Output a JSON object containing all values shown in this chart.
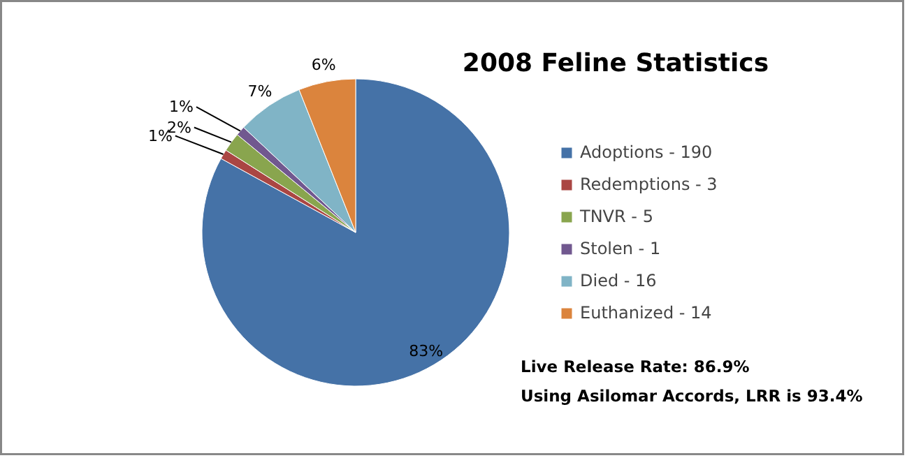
{
  "chart_data": {
    "type": "pie",
    "title": "2008 Feline Statistics",
    "categories": [
      "Adoptions - 190",
      "Redemptions - 3",
      "TNVR - 5",
      "Stolen - 1",
      "Died - 16",
      "Euthanized - 14"
    ],
    "values": [
      83,
      1,
      2,
      1,
      7,
      6
    ],
    "colors": [
      "#4572a7",
      "#aa4643",
      "#89a54e",
      "#71588f",
      "#80b4c6",
      "#db843d"
    ],
    "value_labels": [
      "83%",
      "1%",
      "2%",
      "1%",
      "7%",
      "6%"
    ],
    "legend": "right",
    "annotations": [
      "Live Release Rate:  86.9%",
      "Using Asilomar Accords, LRR is 93.4%"
    ]
  }
}
